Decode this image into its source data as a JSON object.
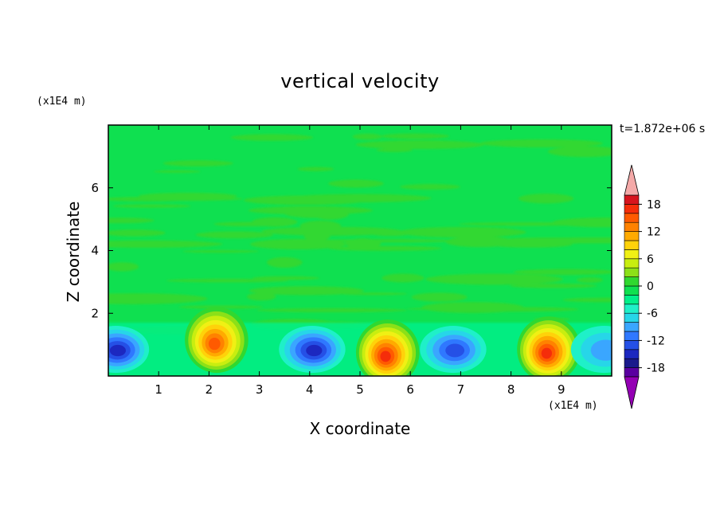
{
  "chart_data": {
    "type": "heatmap",
    "title": "vertical velocity",
    "xlabel": "X coordinate",
    "ylabel": "Z coordinate",
    "x_unit": "(x1E4 m)",
    "y_unit": "(x1E4 m)",
    "time_label": "t=1.872e+06 s",
    "xlim": [
      0,
      10
    ],
    "ylim": [
      0,
      8
    ],
    "x_ticks": [
      1,
      2,
      3,
      4,
      5,
      6,
      7,
      8,
      9
    ],
    "y_ticks": [
      2,
      4,
      6
    ],
    "colorbar": {
      "levels": [
        -20,
        -18,
        -16,
        -14,
        -12,
        -10,
        -8,
        -6,
        -4,
        -2,
        0,
        2,
        4,
        6,
        8,
        10,
        12,
        14,
        16,
        18,
        20
      ],
      "tick_labels": [
        18,
        12,
        6,
        0,
        -6,
        -12,
        -18
      ],
      "colors": [
        "#5a00a0",
        "#1a1a8c",
        "#1c28c0",
        "#2550e6",
        "#2f78ff",
        "#3aa6ff",
        "#27d6e8",
        "#1ff0c8",
        "#00f08a",
        "#0fe050",
        "#30d830",
        "#8ce018",
        "#c8ee10",
        "#f0f014",
        "#ffd20a",
        "#ffaa00",
        "#ff8200",
        "#ff5a00",
        "#f52d0a",
        "#d7141e"
      ],
      "extend_high_color": "#f4a9a8",
      "extend_low_color": "#9400b4"
    },
    "features": [
      {
        "kind": "updraft",
        "x": 2.1,
        "z": 1.0,
        "peak": 14
      },
      {
        "kind": "updraft",
        "x": 5.5,
        "z": 0.6,
        "peak": 16
      },
      {
        "kind": "updraft",
        "x": 8.7,
        "z": 0.7,
        "peak": 16
      },
      {
        "kind": "downdraft",
        "x": 0.2,
        "z": 0.8,
        "peak": -14
      },
      {
        "kind": "downdraft",
        "x": 4.1,
        "z": 0.8,
        "peak": -14
      },
      {
        "kind": "downdraft",
        "x": 6.9,
        "z": 0.8,
        "peak": -12
      },
      {
        "kind": "downdraft",
        "x": 9.9,
        "z": 0.8,
        "peak": -8
      }
    ]
  }
}
